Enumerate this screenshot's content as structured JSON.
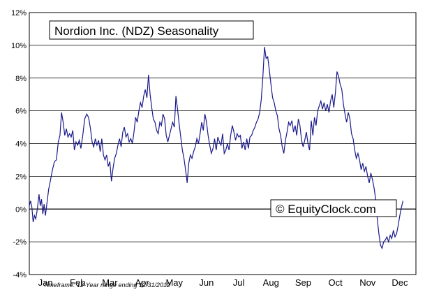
{
  "chart_data": {
    "type": "line",
    "title": "Nordion Inc. (NDZ) Seasonality",
    "watermark": "© EquityClock.com",
    "footnote": "Timeframe: 12-Year range ending 12/31/2012",
    "xlabel": "",
    "ylabel": "",
    "ylim": [
      -4,
      12
    ],
    "yticks": [
      -4,
      -2,
      0,
      2,
      4,
      6,
      8,
      10,
      12
    ],
    "ytick_labels": [
      "-4%",
      "-2%",
      "0%",
      "2%",
      "4%",
      "6%",
      "8%",
      "10%",
      "12%"
    ],
    "months": [
      "Jan",
      "Feb",
      "Mar",
      "Apr",
      "May",
      "Jun",
      "Jul",
      "Aug",
      "Sep",
      "Oct",
      "Nov",
      "Dec"
    ],
    "xlim": [
      0,
      12
    ],
    "grid": true,
    "line_color": "#1a1a8c",
    "zero_line_color": "#000000",
    "series": [
      {
        "points": [
          [
            0.0,
            0.2
          ],
          [
            0.04,
            0.5
          ],
          [
            0.08,
            0.1
          ],
          [
            0.12,
            -0.8
          ],
          [
            0.16,
            -0.4
          ],
          [
            0.2,
            -0.6
          ],
          [
            0.25,
            0.0
          ],
          [
            0.3,
            0.9
          ],
          [
            0.34,
            0.2
          ],
          [
            0.38,
            0.6
          ],
          [
            0.42,
            -0.3
          ],
          [
            0.46,
            0.3
          ],
          [
            0.5,
            -0.4
          ],
          [
            0.55,
            0.4
          ],
          [
            0.6,
            1.2
          ],
          [
            0.66,
            1.8
          ],
          [
            0.72,
            2.4
          ],
          [
            0.78,
            2.9
          ],
          [
            0.84,
            3.0
          ],
          [
            0.9,
            4.1
          ],
          [
            0.95,
            4.5
          ],
          [
            1.0,
            5.9
          ],
          [
            1.05,
            5.3
          ],
          [
            1.1,
            4.5
          ],
          [
            1.15,
            4.9
          ],
          [
            1.2,
            4.4
          ],
          [
            1.25,
            4.6
          ],
          [
            1.3,
            4.4
          ],
          [
            1.35,
            4.8
          ],
          [
            1.4,
            3.6
          ],
          [
            1.45,
            4.1
          ],
          [
            1.5,
            3.9
          ],
          [
            1.55,
            4.2
          ],
          [
            1.6,
            3.7
          ],
          [
            1.66,
            4.5
          ],
          [
            1.72,
            5.5
          ],
          [
            1.78,
            5.8
          ],
          [
            1.84,
            5.6
          ],
          [
            1.9,
            4.9
          ],
          [
            1.95,
            4.1
          ],
          [
            2.0,
            3.8
          ],
          [
            2.05,
            4.3
          ],
          [
            2.1,
            3.9
          ],
          [
            2.15,
            4.2
          ],
          [
            2.2,
            3.5
          ],
          [
            2.25,
            4.3
          ],
          [
            2.3,
            3.3
          ],
          [
            2.35,
            3.0
          ],
          [
            2.4,
            3.3
          ],
          [
            2.45,
            2.6
          ],
          [
            2.5,
            2.9
          ],
          [
            2.55,
            1.7
          ],
          [
            2.6,
            2.5
          ],
          [
            2.65,
            3.1
          ],
          [
            2.7,
            3.4
          ],
          [
            2.75,
            3.9
          ],
          [
            2.8,
            4.3
          ],
          [
            2.85,
            3.8
          ],
          [
            2.9,
            4.7
          ],
          [
            2.95,
            5.0
          ],
          [
            3.0,
            4.4
          ],
          [
            3.05,
            4.6
          ],
          [
            3.1,
            4.1
          ],
          [
            3.15,
            4.3
          ],
          [
            3.2,
            4.0
          ],
          [
            3.25,
            4.7
          ],
          [
            3.3,
            5.6
          ],
          [
            3.35,
            5.3
          ],
          [
            3.4,
            6.0
          ],
          [
            3.45,
            6.5
          ],
          [
            3.5,
            6.2
          ],
          [
            3.55,
            6.9
          ],
          [
            3.6,
            7.3
          ],
          [
            3.65,
            6.8
          ],
          [
            3.7,
            8.2
          ],
          [
            3.75,
            7.0
          ],
          [
            3.8,
            6.2
          ],
          [
            3.85,
            5.5
          ],
          [
            3.9,
            5.3
          ],
          [
            3.95,
            4.8
          ],
          [
            4.0,
            4.6
          ],
          [
            4.05,
            5.3
          ],
          [
            4.1,
            5.1
          ],
          [
            4.15,
            5.8
          ],
          [
            4.2,
            5.5
          ],
          [
            4.25,
            4.5
          ],
          [
            4.3,
            4.1
          ],
          [
            4.35,
            4.5
          ],
          [
            4.4,
            4.9
          ],
          [
            4.45,
            5.3
          ],
          [
            4.5,
            5.0
          ],
          [
            4.55,
            6.9
          ],
          [
            4.6,
            6.1
          ],
          [
            4.65,
            5.2
          ],
          [
            4.7,
            4.4
          ],
          [
            4.75,
            3.6
          ],
          [
            4.8,
            3.1
          ],
          [
            4.85,
            2.4
          ],
          [
            4.9,
            1.6
          ],
          [
            4.95,
            2.8
          ],
          [
            5.0,
            3.3
          ],
          [
            5.05,
            3.1
          ],
          [
            5.1,
            3.5
          ],
          [
            5.15,
            3.8
          ],
          [
            5.2,
            4.3
          ],
          [
            5.25,
            4.0
          ],
          [
            5.3,
            4.6
          ],
          [
            5.35,
            5.3
          ],
          [
            5.4,
            4.8
          ],
          [
            5.45,
            5.8
          ],
          [
            5.5,
            5.3
          ],
          [
            5.55,
            4.5
          ],
          [
            5.6,
            3.9
          ],
          [
            5.65,
            3.4
          ],
          [
            5.7,
            3.7
          ],
          [
            5.75,
            4.3
          ],
          [
            5.8,
            3.6
          ],
          [
            5.85,
            4.4
          ],
          [
            5.9,
            4.1
          ],
          [
            5.95,
            3.9
          ],
          [
            6.0,
            4.6
          ],
          [
            6.05,
            3.4
          ],
          [
            6.1,
            3.6
          ],
          [
            6.15,
            4.0
          ],
          [
            6.2,
            3.6
          ],
          [
            6.25,
            4.5
          ],
          [
            6.3,
            5.1
          ],
          [
            6.35,
            4.7
          ],
          [
            6.4,
            4.2
          ],
          [
            6.45,
            4.6
          ],
          [
            6.5,
            4.4
          ],
          [
            6.55,
            4.5
          ],
          [
            6.6,
            3.7
          ],
          [
            6.65,
            4.1
          ],
          [
            6.7,
            3.6
          ],
          [
            6.75,
            4.3
          ],
          [
            6.8,
            3.7
          ],
          [
            6.85,
            4.4
          ],
          [
            6.9,
            4.5
          ],
          [
            6.95,
            4.8
          ],
          [
            7.0,
            5.0
          ],
          [
            7.05,
            5.3
          ],
          [
            7.1,
            5.5
          ],
          [
            7.15,
            5.9
          ],
          [
            7.2,
            6.7
          ],
          [
            7.25,
            8.1
          ],
          [
            7.3,
            9.9
          ],
          [
            7.35,
            9.2
          ],
          [
            7.4,
            9.3
          ],
          [
            7.45,
            8.5
          ],
          [
            7.5,
            7.6
          ],
          [
            7.55,
            6.8
          ],
          [
            7.6,
            6.5
          ],
          [
            7.65,
            6.0
          ],
          [
            7.7,
            5.7
          ],
          [
            7.75,
            4.9
          ],
          [
            7.8,
            4.5
          ],
          [
            7.85,
            3.8
          ],
          [
            7.9,
            3.4
          ],
          [
            7.95,
            4.2
          ],
          [
            8.0,
            4.7
          ],
          [
            8.05,
            5.3
          ],
          [
            8.1,
            5.1
          ],
          [
            8.15,
            5.4
          ],
          [
            8.2,
            4.7
          ],
          [
            8.25,
            5.1
          ],
          [
            8.3,
            4.5
          ],
          [
            8.35,
            5.5
          ],
          [
            8.4,
            5.1
          ],
          [
            8.45,
            4.2
          ],
          [
            8.5,
            3.8
          ],
          [
            8.55,
            4.2
          ],
          [
            8.6,
            4.7
          ],
          [
            8.65,
            4.0
          ],
          [
            8.7,
            3.6
          ],
          [
            8.75,
            5.4
          ],
          [
            8.8,
            4.5
          ],
          [
            8.85,
            5.6
          ],
          [
            8.9,
            5.1
          ],
          [
            8.95,
            6.0
          ],
          [
            9.0,
            6.3
          ],
          [
            9.05,
            6.6
          ],
          [
            9.1,
            6.1
          ],
          [
            9.15,
            6.5
          ],
          [
            9.2,
            6.0
          ],
          [
            9.25,
            6.4
          ],
          [
            9.3,
            5.9
          ],
          [
            9.35,
            6.6
          ],
          [
            9.4,
            7.0
          ],
          [
            9.45,
            6.2
          ],
          [
            9.5,
            7.1
          ],
          [
            9.55,
            8.4
          ],
          [
            9.6,
            8.1
          ],
          [
            9.65,
            7.6
          ],
          [
            9.7,
            7.3
          ],
          [
            9.75,
            6.4
          ],
          [
            9.8,
            5.8
          ],
          [
            9.85,
            5.3
          ],
          [
            9.9,
            5.9
          ],
          [
            9.95,
            5.5
          ],
          [
            10.0,
            4.6
          ],
          [
            10.05,
            4.3
          ],
          [
            10.1,
            3.6
          ],
          [
            10.15,
            3.1
          ],
          [
            10.2,
            3.4
          ],
          [
            10.25,
            3.0
          ],
          [
            10.3,
            2.4
          ],
          [
            10.35,
            2.8
          ],
          [
            10.4,
            2.3
          ],
          [
            10.45,
            2.6
          ],
          [
            10.5,
            2.0
          ],
          [
            10.55,
            1.6
          ],
          [
            10.6,
            2.2
          ],
          [
            10.65,
            1.8
          ],
          [
            10.7,
            1.3
          ],
          [
            10.75,
            0.6
          ],
          [
            10.8,
            -0.6
          ],
          [
            10.85,
            -1.5
          ],
          [
            10.9,
            -2.2
          ],
          [
            10.95,
            -2.4
          ],
          [
            11.0,
            -2.0
          ],
          [
            11.05,
            -1.9
          ],
          [
            11.1,
            -1.7
          ],
          [
            11.15,
            -2.0
          ],
          [
            11.2,
            -1.6
          ],
          [
            11.25,
            -1.8
          ],
          [
            11.3,
            -1.3
          ],
          [
            11.35,
            -1.7
          ],
          [
            11.4,
            -1.5
          ],
          [
            11.45,
            -1.0
          ],
          [
            11.5,
            -0.4
          ],
          [
            11.55,
            0.1
          ],
          [
            11.6,
            0.5
          ]
        ]
      }
    ]
  }
}
